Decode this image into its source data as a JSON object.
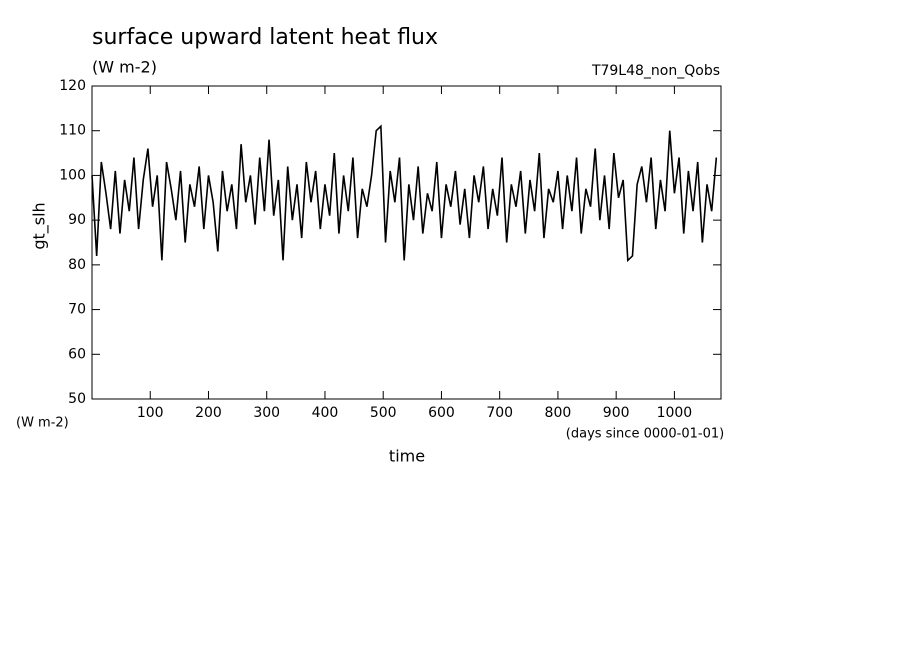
{
  "chart_data": {
    "type": "line",
    "title": "surface upward latent heat flux",
    "subtitle": "(W m-2)",
    "annotation": "T79L48_non_Qobs",
    "y_label": "gt_slh",
    "y_units": "(W m-2)",
    "x_label": "time",
    "x_units": "(days since 0000-01-01)",
    "xlim": [
      0,
      1080
    ],
    "ylim": [
      50,
      120
    ],
    "xticks": [
      100,
      200,
      300,
      400,
      500,
      600,
      700,
      800,
      900,
      1000
    ],
    "yticks": [
      50,
      60,
      70,
      80,
      90,
      100,
      110,
      120
    ],
    "series": [
      {
        "color": "#000000",
        "x": [
          0,
          8,
          16,
          24,
          32,
          40,
          48,
          56,
          64,
          72,
          80,
          88,
          96,
          104,
          112,
          120,
          128,
          136,
          144,
          152,
          160,
          168,
          176,
          184,
          192,
          200,
          208,
          216,
          224,
          232,
          240,
          248,
          256,
          264,
          272,
          280,
          288,
          296,
          304,
          312,
          320,
          328,
          336,
          344,
          352,
          360,
          368,
          376,
          384,
          392,
          400,
          408,
          416,
          424,
          432,
          440,
          448,
          456,
          464,
          472,
          480,
          488,
          496,
          504,
          512,
          520,
          528,
          536,
          544,
          552,
          560,
          568,
          576,
          584,
          592,
          600,
          608,
          616,
          624,
          632,
          640,
          648,
          656,
          664,
          672,
          680,
          688,
          696,
          704,
          712,
          720,
          728,
          736,
          744,
          752,
          760,
          768,
          776,
          784,
          792,
          800,
          808,
          816,
          824,
          832,
          840,
          848,
          856,
          864,
          872,
          880,
          888,
          896,
          904,
          912,
          920,
          928,
          936,
          944,
          952,
          960,
          968,
          976,
          984,
          992,
          1000,
          1008,
          1016,
          1024,
          1032,
          1040,
          1048,
          1056,
          1064,
          1072
        ],
        "values": [
          100,
          82,
          103,
          96,
          88,
          101,
          87,
          99,
          92,
          104,
          88,
          99,
          106,
          93,
          100,
          81,
          103,
          97,
          90,
          101,
          85,
          98,
          93,
          102,
          88,
          100,
          94,
          83,
          101,
          92,
          98,
          88,
          107,
          94,
          100,
          89,
          104,
          92,
          108,
          91,
          99,
          81,
          102,
          90,
          98,
          86,
          103,
          94,
          101,
          88,
          98,
          91,
          105,
          87,
          100,
          92,
          104,
          86,
          97,
          93,
          100,
          110,
          111,
          85,
          101,
          94,
          104,
          81,
          98,
          90,
          102,
          87,
          96,
          92,
          103,
          86,
          98,
          93,
          101,
          89,
          97,
          86,
          100,
          94,
          102,
          88,
          97,
          91,
          104,
          85,
          98,
          93,
          101,
          87,
          99,
          92,
          105,
          86,
          97,
          94,
          101,
          88,
          100,
          92,
          104,
          87,
          97,
          93,
          106,
          90,
          100,
          88,
          105,
          95,
          99,
          81,
          82,
          98,
          102,
          94,
          104,
          88,
          99,
          92,
          110,
          96,
          104,
          87,
          101,
          92,
          103,
          85,
          98,
          92,
          104
        ]
      }
    ]
  }
}
